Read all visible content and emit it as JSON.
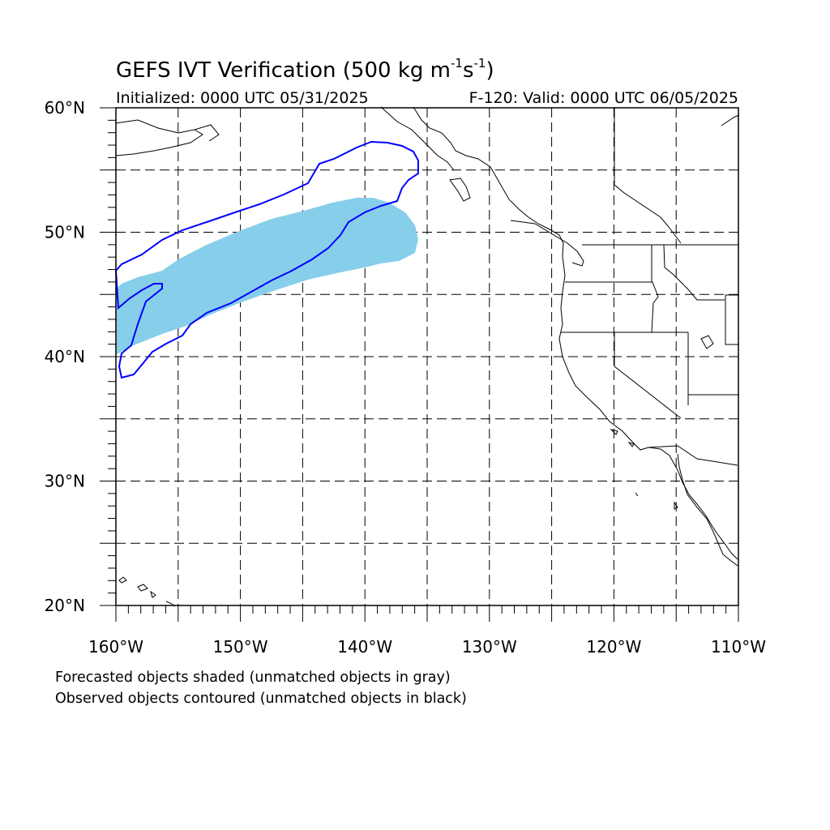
{
  "header": {
    "title_text": "GEFS IVT Verification (500 kg m",
    "title_sup1": "-1",
    "title_mid": "s",
    "title_sup2": "-1",
    "title_end": ")",
    "initialized": "Initialized: 0000 UTC 05/31/2025",
    "valid": "F-120: Valid: 0000 UTC 06/05/2025"
  },
  "map": {
    "lon_range": [
      -160,
      -110
    ],
    "lat_range": [
      20,
      60
    ],
    "lon_ticks": [
      {
        "lon": -160,
        "label": "160°W"
      },
      {
        "lon": -150,
        "label": "150°W"
      },
      {
        "lon": -140,
        "label": "140°W"
      },
      {
        "lon": -130,
        "label": "130°W"
      },
      {
        "lon": -120,
        "label": "120°W"
      },
      {
        "lon": -110,
        "label": "110°W"
      }
    ],
    "lat_ticks": [
      {
        "lat": 60,
        "label": "60°N"
      },
      {
        "lat": 50,
        "label": "50°N"
      },
      {
        "lat": 40,
        "label": "40°N"
      },
      {
        "lat": 30,
        "label": "30°N"
      },
      {
        "lat": 20,
        "label": "20°N"
      }
    ],
    "forecast_object_color": "#87ceeb",
    "observed_contour_color": "#0000ff",
    "coastline_color": "#000000"
  },
  "legend": {
    "line1": "Forecasted objects shaded (unmatched objects in gray)",
    "line2": "Observed objects contoured (unmatched objects in black)"
  }
}
